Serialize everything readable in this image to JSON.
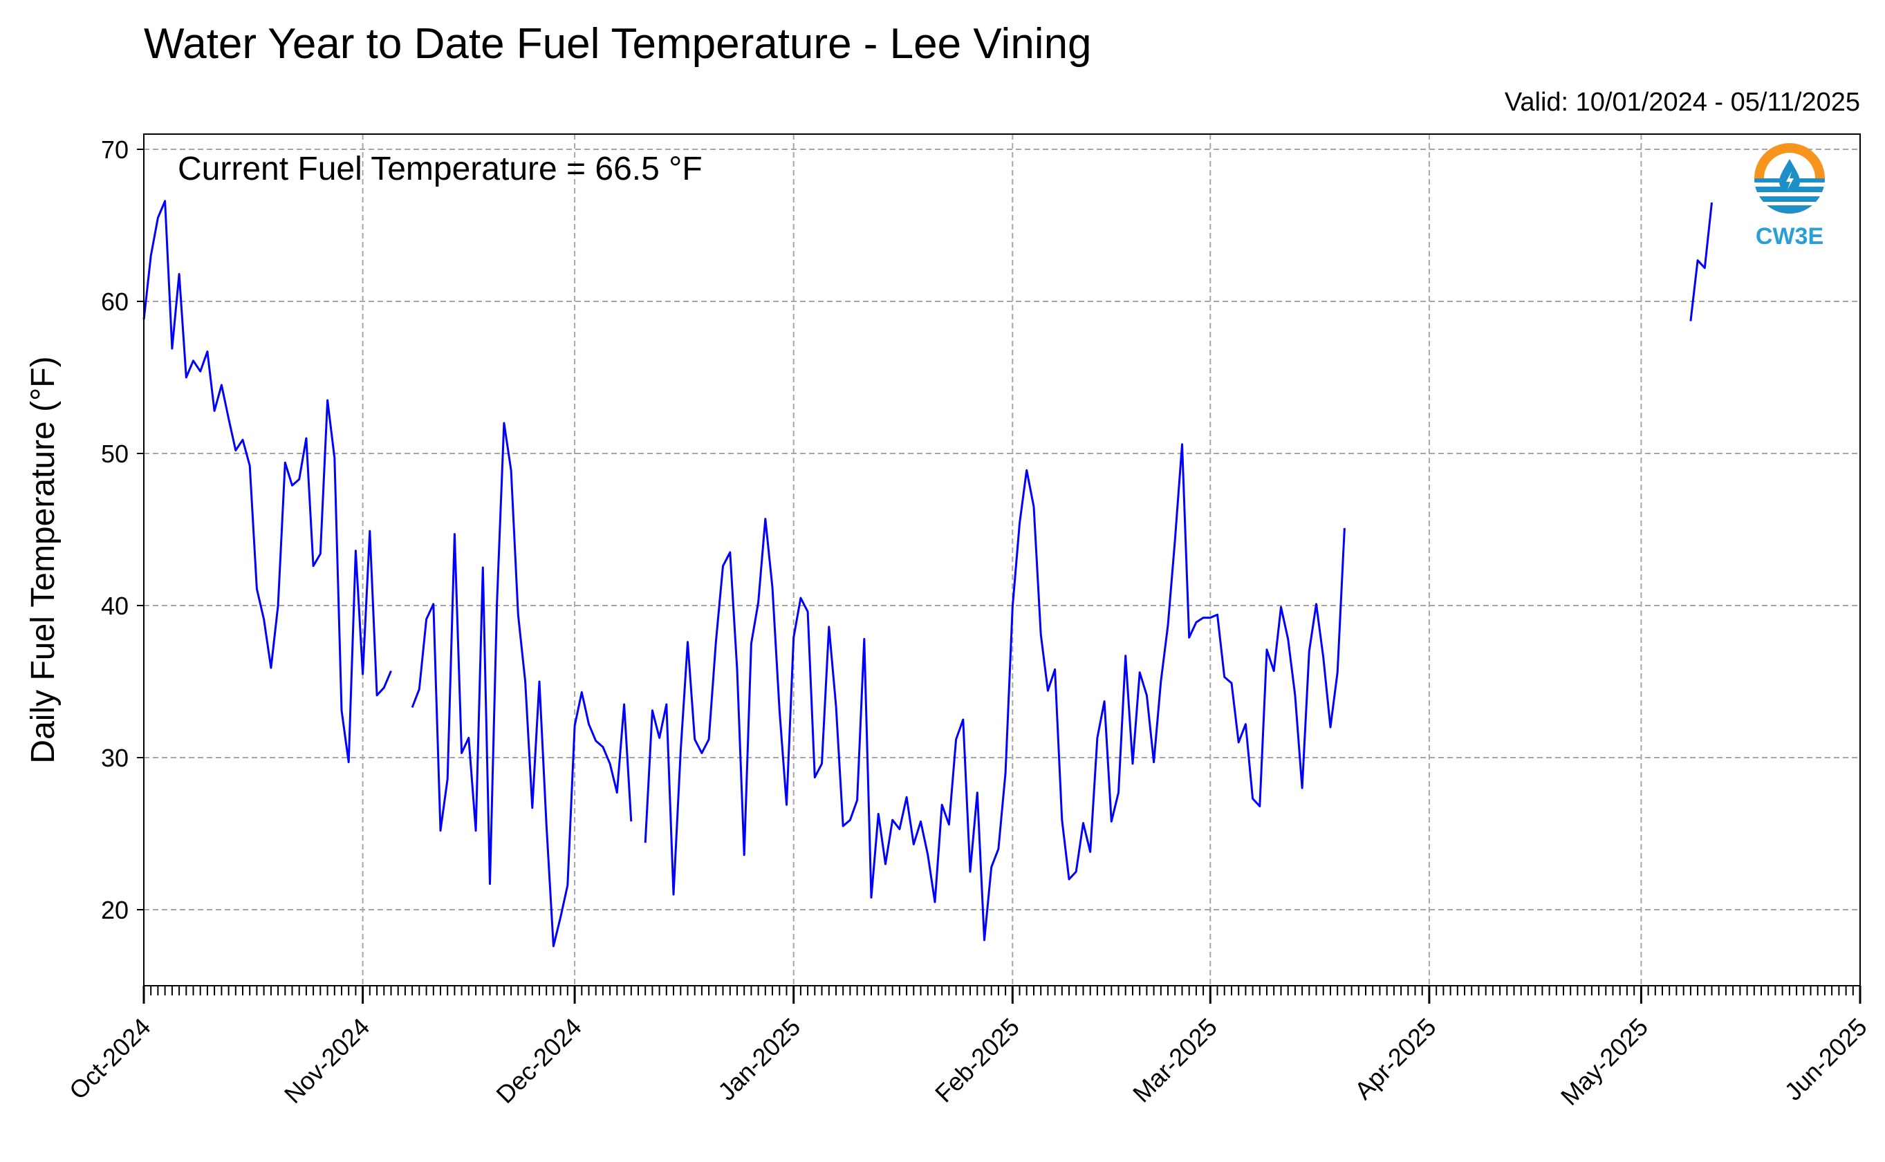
{
  "chart_data": {
    "type": "line",
    "title": "Water Year to Date Fuel Temperature - Lee Vining",
    "subtitle": "Valid: 10/01/2024 - 05/11/2025",
    "annotation": "Current Fuel Temperature = 66.5 °F",
    "ylabel": "Daily Fuel Temperature (°F)",
    "xlabel": "",
    "ylim": [
      15,
      71
    ],
    "yticks": [
      20,
      30,
      40,
      50,
      60,
      70
    ],
    "xlim": [
      "2024-10-01",
      "2025-06-01"
    ],
    "xticks": [
      {
        "date": "2024-10-01",
        "label": "Oct-2024"
      },
      {
        "date": "2024-11-01",
        "label": "Nov-2024"
      },
      {
        "date": "2024-12-01",
        "label": "Dec-2024"
      },
      {
        "date": "2025-01-01",
        "label": "Jan-2025"
      },
      {
        "date": "2025-02-01",
        "label": "Feb-2025"
      },
      {
        "date": "2025-03-01",
        "label": "Mar-2025"
      },
      {
        "date": "2025-04-01",
        "label": "Apr-2025"
      },
      {
        "date": "2025-05-01",
        "label": "May-2025"
      },
      {
        "date": "2025-06-01",
        "label": "Jun-2025"
      }
    ],
    "grid": true,
    "line_color": "#0000ff",
    "logo": "CW3E",
    "series": [
      {
        "start": "2024-10-01",
        "values": [
          58.8,
          63.0,
          65.5,
          66.6,
          56.9,
          61.8,
          55.0,
          56.1,
          55.4,
          56.7,
          52.8,
          54.5,
          52.3,
          50.2,
          50.9,
          49.2,
          41.1,
          39.1,
          35.9,
          40.0,
          49.4,
          47.9,
          48.3,
          51.0,
          42.6,
          43.4,
          53.5,
          49.7,
          33.1,
          29.7,
          43.6,
          35.5,
          44.9,
          34.1,
          34.6,
          35.7
        ]
      },
      {
        "start": "2024-11-08",
        "values": [
          33.3,
          34.5,
          39.1,
          40.1,
          25.2,
          28.6,
          44.7,
          30.3,
          31.3,
          25.2,
          42.5,
          21.7,
          40.2,
          52.0,
          48.9,
          39.4,
          35.0,
          26.7,
          35.0,
          25.6,
          17.6,
          19.5,
          21.6,
          32.1,
          34.3,
          32.2,
          31.1,
          30.7,
          29.6,
          27.7,
          33.5,
          25.8
        ]
      },
      {
        "start": "2024-12-11",
        "values": [
          24.4,
          33.1,
          31.3,
          33.5,
          21.0,
          30.4,
          37.6,
          31.2,
          30.3,
          31.2,
          37.6,
          42.6,
          43.5,
          35.8,
          23.6,
          37.5,
          40.2,
          45.7,
          41.2,
          33.1,
          26.9,
          37.9,
          40.5,
          39.6,
          28.7,
          29.6,
          38.6,
          33.4,
          25.5,
          25.9,
          27.2,
          37.8,
          20.8,
          26.3,
          23.0,
          25.9,
          25.3,
          27.4,
          24.3,
          25.8,
          23.6,
          20.5,
          26.9,
          25.6,
          31.2,
          32.5,
          22.5,
          27.7,
          18.0,
          22.8,
          24.0,
          29.0,
          39.9,
          45.4,
          48.9,
          46.5,
          38.1,
          34.4,
          35.8,
          25.9,
          22.0,
          22.5,
          25.7,
          23.8,
          31.3,
          33.7,
          25.8,
          27.7,
          36.7,
          29.6,
          35.6,
          34.1,
          29.7,
          35.0,
          38.7,
          44.3,
          50.6,
          37.9,
          38.9,
          39.2,
          39.2,
          39.4,
          35.3,
          34.9,
          31.0,
          32.2,
          27.3,
          26.8,
          37.1,
          35.7,
          39.9,
          37.8,
          34.1,
          28.0,
          37.0,
          40.1,
          36.6,
          32.0,
          35.6,
          45.1
        ]
      },
      {
        "start": "2025-05-08",
        "values": [
          58.7,
          62.7,
          62.2,
          66.5
        ]
      }
    ]
  }
}
